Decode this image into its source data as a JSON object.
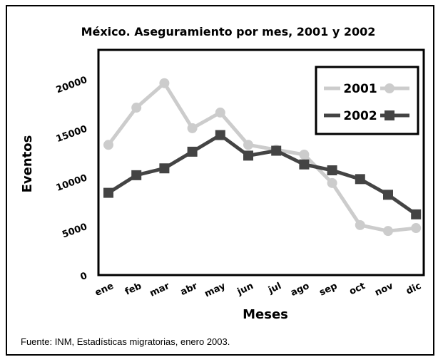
{
  "chart_data": {
    "type": "line",
    "title": "México. Aseguramiento por mes, 2001 y 2002",
    "xlabel": "Meses",
    "ylabel": "Eventos",
    "categories": [
      "ene",
      "feb",
      "mar",
      "abr",
      "may",
      "jun",
      "jul",
      "ago",
      "sep",
      "oct",
      "nov",
      "dic"
    ],
    "yticks": [
      "0",
      "5000",
      "10000",
      "15000",
      "20000"
    ],
    "ylim": [
      0,
      23000
    ],
    "grid": false,
    "legend_position": "top-right",
    "series": [
      {
        "name": "2001",
        "color": "#cccccc",
        "marker": "circle",
        "values": [
          13300,
          17100,
          19600,
          15000,
          16600,
          13300,
          12800,
          12300,
          9400,
          5100,
          4500,
          4800
        ]
      },
      {
        "name": "2002",
        "color": "#444444",
        "marker": "square",
        "values": [
          8400,
          10200,
          10900,
          12600,
          14300,
          12200,
          12700,
          11300,
          10700,
          9800,
          8200,
          6200
        ]
      }
    ]
  },
  "source": "Fuente: INM, Estadísticas migratorias, enero 2003."
}
